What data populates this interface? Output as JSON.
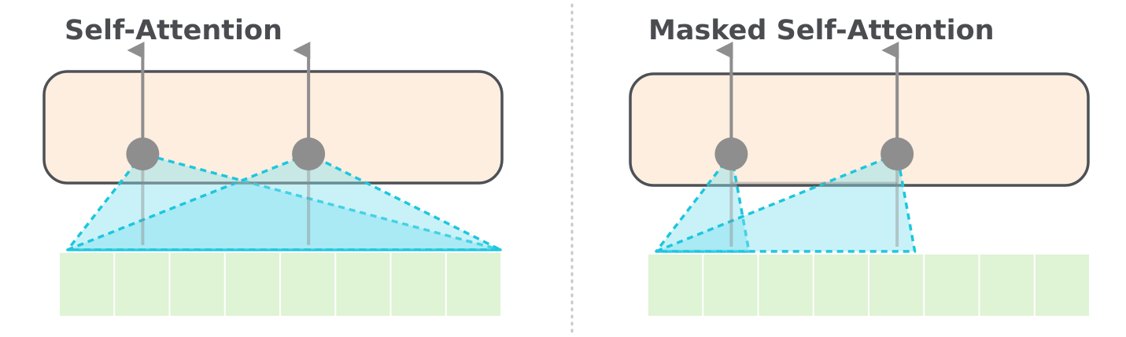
{
  "panels": [
    {
      "id": "self-attention",
      "title": "Self-Attention",
      "token_count": 8,
      "nodes": [
        {
          "token_index": 1,
          "attends_to_tokens": [
            0,
            7
          ]
        },
        {
          "token_index": 4,
          "attends_to_tokens": [
            0,
            7
          ]
        }
      ]
    },
    {
      "id": "masked-self-attention",
      "title": "Masked Self-Attention",
      "token_count": 8,
      "nodes": [
        {
          "token_index": 1,
          "attends_to_tokens": [
            0,
            1
          ]
        },
        {
          "token_index": 4,
          "attends_to_tokens": [
            0,
            4
          ]
        }
      ]
    }
  ],
  "colors": {
    "layer_fill": "#fdeedf",
    "layer_stroke": "#4d5156",
    "token_fill": "#dff3d5",
    "token_divider": "#ffffff",
    "node_fill": "#8e8e8e",
    "arrow": "#8e8e8e",
    "attention_fill": "#7fe0ee",
    "attention_stroke": "#1dc6de",
    "divider": "#c8c8c8"
  }
}
